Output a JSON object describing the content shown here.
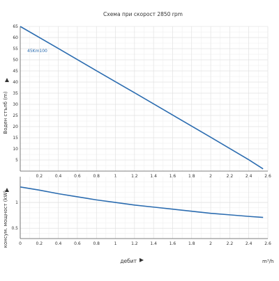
{
  "title": "Схема при скорост 2850 rpm",
  "chart_data": [
    {
      "type": "line",
      "ylabel": "Воден стълб (m)",
      "xlim": [
        0,
        2.6
      ],
      "ylim": [
        0,
        65
      ],
      "x_ticks": [
        "0.2",
        "0.4",
        "0.6",
        "0.8",
        "1",
        "1.2",
        "1.4",
        "1.6",
        "1.8",
        "2",
        "2.2",
        "2.4",
        "2.6"
      ],
      "y_ticks": [
        "5",
        "10",
        "15",
        "20",
        "25",
        "30",
        "35",
        "40",
        "45",
        "50",
        "55",
        "60",
        "65"
      ],
      "grid": true,
      "series": [
        {
          "name": "45Km100",
          "x": [
            0,
            0.4,
            0.8,
            1.2,
            1.6,
            2.0,
            2.4,
            2.55
          ],
          "y": [
            65,
            55.1,
            45.1,
            35.2,
            25.2,
            15.2,
            5.1,
            1.0
          ]
        }
      ]
    },
    {
      "type": "line",
      "ylabel": "консум. мощност (kW)",
      "xlabel": "дебит",
      "xunit": "m³/h",
      "xlim": [
        0,
        2.6
      ],
      "ylim": [
        0.3,
        1.5
      ],
      "x_ticks": [
        "0",
        "0.2",
        "0.4",
        "0.6",
        "0.8",
        "1",
        "1.2",
        "1.4",
        "1.6",
        "1.8",
        "2",
        "2.2",
        "2.4",
        "2.6"
      ],
      "y_ticks": [
        "0.5",
        "1"
      ],
      "grid": true,
      "series": [
        {
          "x": [
            0,
            0.2,
            0.4,
            0.6,
            0.8,
            1.0,
            1.2,
            1.4,
            1.6,
            1.8,
            2.0,
            2.2,
            2.4,
            2.55
          ],
          "y": [
            1.3,
            1.24,
            1.17,
            1.11,
            1.05,
            1.0,
            0.95,
            0.91,
            0.87,
            0.83,
            0.79,
            0.76,
            0.73,
            0.71
          ]
        }
      ]
    }
  ],
  "colors": {
    "series": "#2b6cb0",
    "grid": "#dddddd",
    "axis": "#555555",
    "text": "#333333"
  }
}
